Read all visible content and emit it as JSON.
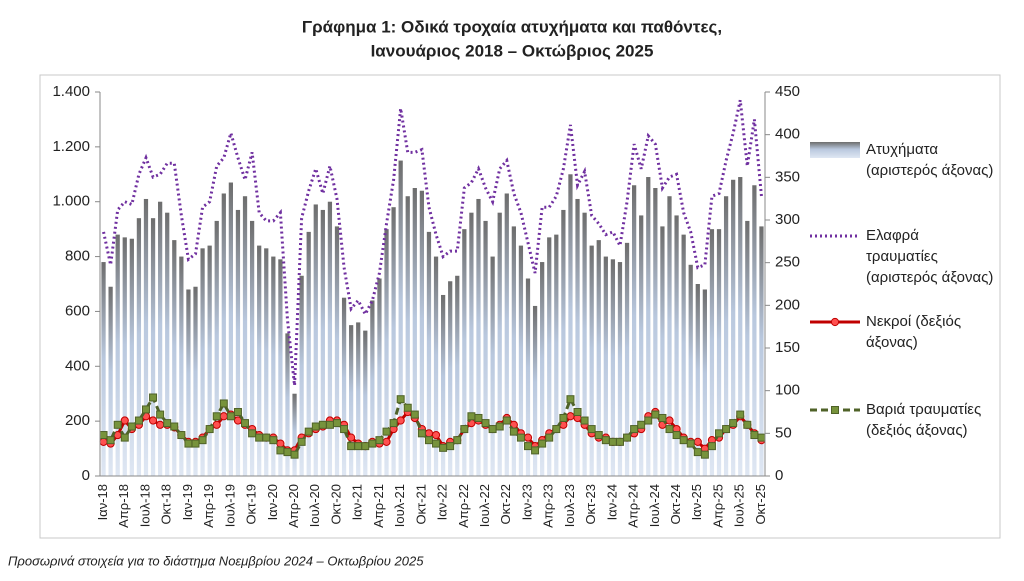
{
  "chart_data": {
    "type": "combo",
    "title": [
      "Γράφημα 1: Οδικά τροχαία ατυχήματα και παθόντες,",
      "Ιανουάριος 2018 – Οκτώβριος 2025"
    ],
    "note": "Προσωρινά στοιχεία για το διάστημα Νοεμβρίου 2024 – Οκτωβρίου 2025",
    "categories": [
      "Ιαν-18",
      null,
      null,
      "Απρ-18",
      null,
      null,
      "Ιουλ-18",
      null,
      null,
      "Οκτ-18",
      null,
      null,
      "Ιαν-19",
      null,
      null,
      "Απρ-19",
      null,
      null,
      "Ιουλ-19",
      null,
      null,
      "Οκτ-19",
      null,
      null,
      "Ιαν-20",
      null,
      null,
      "Απρ-20",
      null,
      null,
      "Ιουλ-20",
      null,
      null,
      "Οκτ-20",
      null,
      null,
      "Ιαν-21",
      null,
      null,
      "Απρ-21",
      null,
      null,
      "Ιουλ-21",
      null,
      null,
      "Οκτ-21",
      null,
      null,
      "Ιαν-22",
      null,
      null,
      "Απρ-22",
      null,
      null,
      "Ιουλ-22",
      null,
      null,
      "Οκτ-22",
      null,
      null,
      "Ιαν-23",
      null,
      null,
      "Απρ-23",
      null,
      null,
      "Ιουλ-23",
      null,
      null,
      "Οκτ-23",
      null,
      null,
      "Ιαν-24",
      null,
      null,
      "Απρ-24",
      null,
      null,
      "Ιουλ-24",
      null,
      null,
      "Οκτ-24",
      null,
      null,
      "Ιαν-25",
      null,
      null,
      "Απρ-25",
      null,
      null,
      "Ιουλ-25",
      null,
      null,
      "Οκτ-25"
    ],
    "series": [
      {
        "name": "Ατυχήματα (αριστερός άξονας)",
        "kind": "bar",
        "axis": "y",
        "color": "#6d6d6d",
        "values": [
          780,
          690,
          880,
          870,
          865,
          940,
          1010,
          940,
          1000,
          960,
          860,
          800,
          680,
          690,
          830,
          840,
          930,
          1030,
          1070,
          970,
          1020,
          930,
          840,
          830,
          800,
          790,
          520,
          300,
          730,
          890,
          990,
          970,
          1000,
          910,
          650,
          550,
          560,
          530,
          640,
          720,
          900,
          980,
          1150,
          1020,
          1050,
          1040,
          890,
          800,
          660,
          710,
          730,
          900,
          960,
          1010,
          930,
          800,
          960,
          1030,
          910,
          840,
          720,
          620,
          780,
          870,
          880,
          970,
          1100,
          1010,
          960,
          840,
          860,
          800,
          790,
          780,
          850,
          1060,
          950,
          1090,
          1050,
          910,
          1020,
          950,
          880,
          770,
          700,
          680,
          900,
          900,
          1020,
          1080,
          1090,
          930,
          1060,
          910
        ]
      },
      {
        "name": "Ελαφρά τραυματίες (αριστερός άξονας)",
        "kind": "line",
        "line_style": "dotted",
        "axis": "y",
        "color": "#7030a0",
        "values": [
          890,
          770,
          970,
          1000,
          990,
          1100,
          1160,
          1090,
          1100,
          1140,
          1140,
          950,
          790,
          810,
          980,
          1000,
          1130,
          1160,
          1250,
          1160,
          1080,
          1180,
          960,
          930,
          930,
          960,
          570,
          330,
          940,
          1040,
          1120,
          1030,
          1130,
          1010,
          760,
          610,
          640,
          590,
          640,
          740,
          920,
          1080,
          1340,
          1180,
          1180,
          1190,
          980,
          880,
          800,
          820,
          820,
          1050,
          1070,
          1120,
          1050,
          1000,
          1120,
          1150,
          1030,
          960,
          850,
          740,
          980,
          980,
          1020,
          1120,
          1280,
          1060,
          1110,
          950,
          920,
          880,
          890,
          840,
          1000,
          1210,
          1120,
          1240,
          1210,
          1050,
          1090,
          1100,
          960,
          890,
          760,
          770,
          1020,
          1030,
          1150,
          1250,
          1370,
          1130,
          1300,
          1020
        ]
      },
      {
        "name": "Νεκροί (δεξιός άξονας)",
        "kind": "line",
        "line_style": "solid",
        "marker": "circle",
        "axis": "y2",
        "color": "#c00000",
        "values": [
          40,
          38,
          48,
          65,
          55,
          60,
          70,
          65,
          60,
          60,
          57,
          48,
          40,
          40,
          45,
          55,
          60,
          70,
          72,
          65,
          60,
          55,
          48,
          45,
          45,
          38,
          30,
          30,
          45,
          50,
          55,
          58,
          65,
          65,
          60,
          45,
          38,
          35,
          40,
          38,
          40,
          55,
          65,
          75,
          68,
          55,
          50,
          48,
          35,
          40,
          42,
          55,
          62,
          65,
          60,
          55,
          60,
          68,
          60,
          50,
          45,
          35,
          42,
          50,
          55,
          60,
          70,
          68,
          60,
          50,
          45,
          45,
          40,
          40,
          45,
          50,
          55,
          70,
          75,
          60,
          65,
          55,
          45,
          40,
          40,
          32,
          42,
          45,
          55,
          60,
          70,
          60,
          50,
          42
        ]
      },
      {
        "name": "Βαριά τραυματίες (δεξιός άξονας)",
        "kind": "line",
        "line_style": "dashed",
        "marker": "square",
        "axis": "y2",
        "color": "#4f6228",
        "values": [
          48,
          42,
          60,
          45,
          58,
          65,
          78,
          92,
          72,
          62,
          58,
          48,
          38,
          38,
          42,
          55,
          70,
          85,
          70,
          75,
          62,
          50,
          45,
          45,
          42,
          30,
          28,
          25,
          40,
          52,
          58,
          60,
          60,
          62,
          55,
          35,
          35,
          35,
          38,
          42,
          52,
          62,
          90,
          80,
          72,
          50,
          42,
          38,
          33,
          35,
          42,
          55,
          70,
          68,
          62,
          55,
          58,
          65,
          52,
          45,
          35,
          30,
          38,
          45,
          55,
          68,
          90,
          75,
          65,
          55,
          48,
          42,
          40,
          40,
          45,
          55,
          60,
          65,
          72,
          68,
          55,
          48,
          42,
          38,
          28,
          25,
          35,
          50,
          55,
          62,
          72,
          60,
          48,
          45
        ]
      }
    ],
    "ylim": [
      0,
      1400
    ],
    "yticks": [
      0,
      200,
      400,
      600,
      800,
      {
        "value": 1000,
        "label": "1.000"
      },
      {
        "value": 1200,
        "label": "1.200"
      },
      {
        "value": 1400,
        "label": "1.400"
      }
    ],
    "y2lim": [
      0,
      450
    ],
    "y2ticks": [
      0,
      50,
      100,
      150,
      200,
      250,
      300,
      350,
      400,
      450
    ]
  }
}
